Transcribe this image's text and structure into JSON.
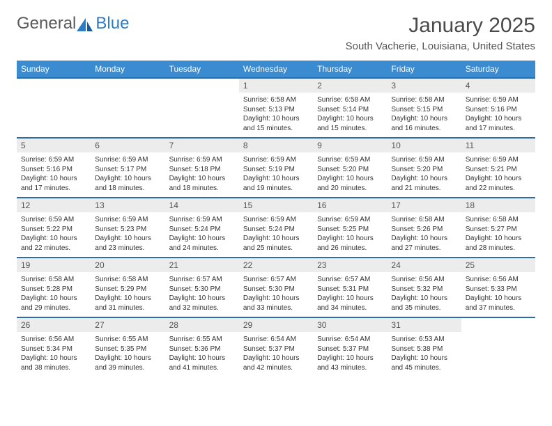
{
  "brand": {
    "part1": "General",
    "part2": "Blue"
  },
  "title": {
    "month": "January 2025",
    "location": "South Vacherie, Louisiana, United States"
  },
  "colors": {
    "header_bg": "#3b8bd0",
    "row_border": "#2e6ba8",
    "daynum_bg": "#ececec",
    "logo_blue": "#2e7cc4"
  },
  "weekdays": [
    "Sunday",
    "Monday",
    "Tuesday",
    "Wednesday",
    "Thursday",
    "Friday",
    "Saturday"
  ],
  "weeks": [
    [
      null,
      null,
      null,
      {
        "n": "1",
        "sr": "6:58 AM",
        "ss": "5:13 PM",
        "dl": "10 hours and 15 minutes."
      },
      {
        "n": "2",
        "sr": "6:58 AM",
        "ss": "5:14 PM",
        "dl": "10 hours and 15 minutes."
      },
      {
        "n": "3",
        "sr": "6:58 AM",
        "ss": "5:15 PM",
        "dl": "10 hours and 16 minutes."
      },
      {
        "n": "4",
        "sr": "6:59 AM",
        "ss": "5:16 PM",
        "dl": "10 hours and 17 minutes."
      }
    ],
    [
      {
        "n": "5",
        "sr": "6:59 AM",
        "ss": "5:16 PM",
        "dl": "10 hours and 17 minutes."
      },
      {
        "n": "6",
        "sr": "6:59 AM",
        "ss": "5:17 PM",
        "dl": "10 hours and 18 minutes."
      },
      {
        "n": "7",
        "sr": "6:59 AM",
        "ss": "5:18 PM",
        "dl": "10 hours and 18 minutes."
      },
      {
        "n": "8",
        "sr": "6:59 AM",
        "ss": "5:19 PM",
        "dl": "10 hours and 19 minutes."
      },
      {
        "n": "9",
        "sr": "6:59 AM",
        "ss": "5:20 PM",
        "dl": "10 hours and 20 minutes."
      },
      {
        "n": "10",
        "sr": "6:59 AM",
        "ss": "5:20 PM",
        "dl": "10 hours and 21 minutes."
      },
      {
        "n": "11",
        "sr": "6:59 AM",
        "ss": "5:21 PM",
        "dl": "10 hours and 22 minutes."
      }
    ],
    [
      {
        "n": "12",
        "sr": "6:59 AM",
        "ss": "5:22 PM",
        "dl": "10 hours and 22 minutes."
      },
      {
        "n": "13",
        "sr": "6:59 AM",
        "ss": "5:23 PM",
        "dl": "10 hours and 23 minutes."
      },
      {
        "n": "14",
        "sr": "6:59 AM",
        "ss": "5:24 PM",
        "dl": "10 hours and 24 minutes."
      },
      {
        "n": "15",
        "sr": "6:59 AM",
        "ss": "5:24 PM",
        "dl": "10 hours and 25 minutes."
      },
      {
        "n": "16",
        "sr": "6:59 AM",
        "ss": "5:25 PM",
        "dl": "10 hours and 26 minutes."
      },
      {
        "n": "17",
        "sr": "6:58 AM",
        "ss": "5:26 PM",
        "dl": "10 hours and 27 minutes."
      },
      {
        "n": "18",
        "sr": "6:58 AM",
        "ss": "5:27 PM",
        "dl": "10 hours and 28 minutes."
      }
    ],
    [
      {
        "n": "19",
        "sr": "6:58 AM",
        "ss": "5:28 PM",
        "dl": "10 hours and 29 minutes."
      },
      {
        "n": "20",
        "sr": "6:58 AM",
        "ss": "5:29 PM",
        "dl": "10 hours and 31 minutes."
      },
      {
        "n": "21",
        "sr": "6:57 AM",
        "ss": "5:30 PM",
        "dl": "10 hours and 32 minutes."
      },
      {
        "n": "22",
        "sr": "6:57 AM",
        "ss": "5:30 PM",
        "dl": "10 hours and 33 minutes."
      },
      {
        "n": "23",
        "sr": "6:57 AM",
        "ss": "5:31 PM",
        "dl": "10 hours and 34 minutes."
      },
      {
        "n": "24",
        "sr": "6:56 AM",
        "ss": "5:32 PM",
        "dl": "10 hours and 35 minutes."
      },
      {
        "n": "25",
        "sr": "6:56 AM",
        "ss": "5:33 PM",
        "dl": "10 hours and 37 minutes."
      }
    ],
    [
      {
        "n": "26",
        "sr": "6:56 AM",
        "ss": "5:34 PM",
        "dl": "10 hours and 38 minutes."
      },
      {
        "n": "27",
        "sr": "6:55 AM",
        "ss": "5:35 PM",
        "dl": "10 hours and 39 minutes."
      },
      {
        "n": "28",
        "sr": "6:55 AM",
        "ss": "5:36 PM",
        "dl": "10 hours and 41 minutes."
      },
      {
        "n": "29",
        "sr": "6:54 AM",
        "ss": "5:37 PM",
        "dl": "10 hours and 42 minutes."
      },
      {
        "n": "30",
        "sr": "6:54 AM",
        "ss": "5:37 PM",
        "dl": "10 hours and 43 minutes."
      },
      {
        "n": "31",
        "sr": "6:53 AM",
        "ss": "5:38 PM",
        "dl": "10 hours and 45 minutes."
      },
      null
    ]
  ],
  "labels": {
    "sunrise": "Sunrise:",
    "sunset": "Sunset:",
    "daylight": "Daylight:"
  }
}
